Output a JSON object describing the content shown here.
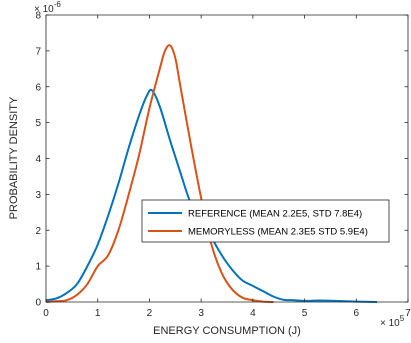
{
  "chart_data": {
    "type": "line",
    "title": "",
    "xlabel": "ENERGY CONSUMPTION (J)",
    "ylabel": "PROBABILITY DENSITY",
    "x_multiplier": {
      "base": "× 10",
      "exp": "5"
    },
    "y_multiplier": {
      "base": "× 10",
      "exp": "-6"
    },
    "xlim": [
      0,
      7
    ],
    "ylim": [
      0,
      8
    ],
    "xticks": [
      "0",
      "1",
      "2",
      "3",
      "4",
      "5",
      "6",
      "7"
    ],
    "yticks": [
      "0",
      "1",
      "2",
      "3",
      "4",
      "5",
      "6",
      "7",
      "8"
    ],
    "grid": false,
    "legend_position": "center-right",
    "series": [
      {
        "name": "REFERENCE (MEAN 2.2E5, STD 7.8E4)",
        "color": "#0072BD",
        "x": [
          0.0,
          0.2,
          0.4,
          0.6,
          0.8,
          1.0,
          1.2,
          1.4,
          1.6,
          1.8,
          1.95,
          2.05,
          2.2,
          2.4,
          2.6,
          2.8,
          3.0,
          3.2,
          3.4,
          3.6,
          3.8,
          4.0,
          4.2,
          4.4,
          4.6,
          4.8,
          5.0,
          5.3,
          5.6,
          6.0,
          6.4
        ],
        "y": [
          0.05,
          0.1,
          0.25,
          0.5,
          1.0,
          1.6,
          2.4,
          3.3,
          4.3,
          5.2,
          5.75,
          5.9,
          5.45,
          4.5,
          3.6,
          2.75,
          2.3,
          1.8,
          1.3,
          0.9,
          0.6,
          0.45,
          0.3,
          0.15,
          0.06,
          0.05,
          0.03,
          0.04,
          0.03,
          0.01,
          0.0
        ]
      },
      {
        "name": "MEMORYLESS (MEAN 2.3E5 STD 5.9E4)",
        "color": "#D95319",
        "x": [
          0.0,
          0.2,
          0.4,
          0.6,
          0.8,
          1.0,
          1.2,
          1.4,
          1.6,
          1.8,
          2.0,
          2.2,
          2.3,
          2.4,
          2.5,
          2.6,
          2.8,
          3.0,
          3.2,
          3.4,
          3.6,
          3.8,
          4.0,
          4.2,
          4.4
        ],
        "y": [
          0.0,
          0.02,
          0.05,
          0.2,
          0.5,
          1.0,
          1.3,
          2.0,
          3.0,
          4.1,
          5.4,
          6.5,
          7.0,
          7.15,
          6.8,
          6.0,
          4.4,
          2.9,
          1.6,
          0.8,
          0.35,
          0.12,
          0.05,
          0.01,
          0.0
        ]
      }
    ]
  }
}
